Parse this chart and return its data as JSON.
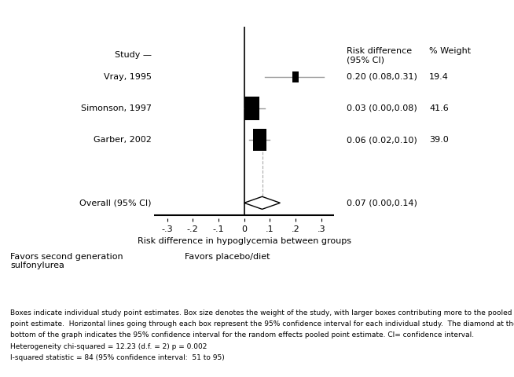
{
  "studies": [
    "Vray, 1995",
    "Simonson, 1997",
    "Garber, 2002"
  ],
  "estimates": [
    0.2,
    0.03,
    0.06
  ],
  "ci_lower": [
    0.08,
    0.0,
    0.02
  ],
  "ci_upper": [
    0.31,
    0.08,
    0.1
  ],
  "weights": [
    19.4,
    41.6,
    39.0
  ],
  "weight_labels": [
    "19.4",
    "41.6",
    "39.0"
  ],
  "ci_labels": [
    "0.20 (0.08,0.31)",
    "0.03 (0.00,0.08)",
    "0.06 (0.02,0.10)"
  ],
  "overall_estimate": 0.07,
  "overall_ci_lower": 0.0,
  "overall_ci_upper": 0.14,
  "overall_label": "0.07 (0.00,0.14)",
  "overall_study_label": "Overall (95% CI)",
  "xlim": [
    -0.35,
    0.35
  ],
  "xticks": [
    -0.3,
    -0.2,
    -0.1,
    0.0,
    0.1,
    0.2,
    0.3
  ],
  "xtick_labels": [
    "-.3",
    "-.2",
    "-.1",
    "0",
    ".1",
    ".2",
    ".3"
  ],
  "xlabel": "Risk difference in hypoglycemia between groups",
  "header_rd": "Risk difference\n(95% CI)",
  "header_weight": "% Weight",
  "header_study": "Study —",
  "favors_left": "Favors second generation\nsulfonylurea",
  "favors_right": "Favors placebo/diet",
  "footnote_line1": "Boxes indicate individual study point estimates. Box size denotes the weight of the study, with larger boxes contributing more to the pooled",
  "footnote_line2": "point estimate.  Horizontal lines going through each box represent the 95% confidence interval for each individual study.  The diamond at the",
  "footnote_line3": "bottom of the graph indicates the 95% confidence interval for the random effects pooled point estimate. CI= confidence interval.",
  "footnote_line4": "Heterogeneity chi-squared = 12.23 (d.f. = 2) p = 0.002",
  "footnote_line5": "I-squared statistic = 84 (95% confidence interval:  51 to 95)",
  "box_color": "#000000",
  "ci_line_color": "#999999",
  "diamond_facecolor": "#ffffff",
  "diamond_edgecolor": "#000000",
  "background_color": "#ffffff",
  "vline_color": "#000000",
  "dashed_color": "#aaaaaa"
}
